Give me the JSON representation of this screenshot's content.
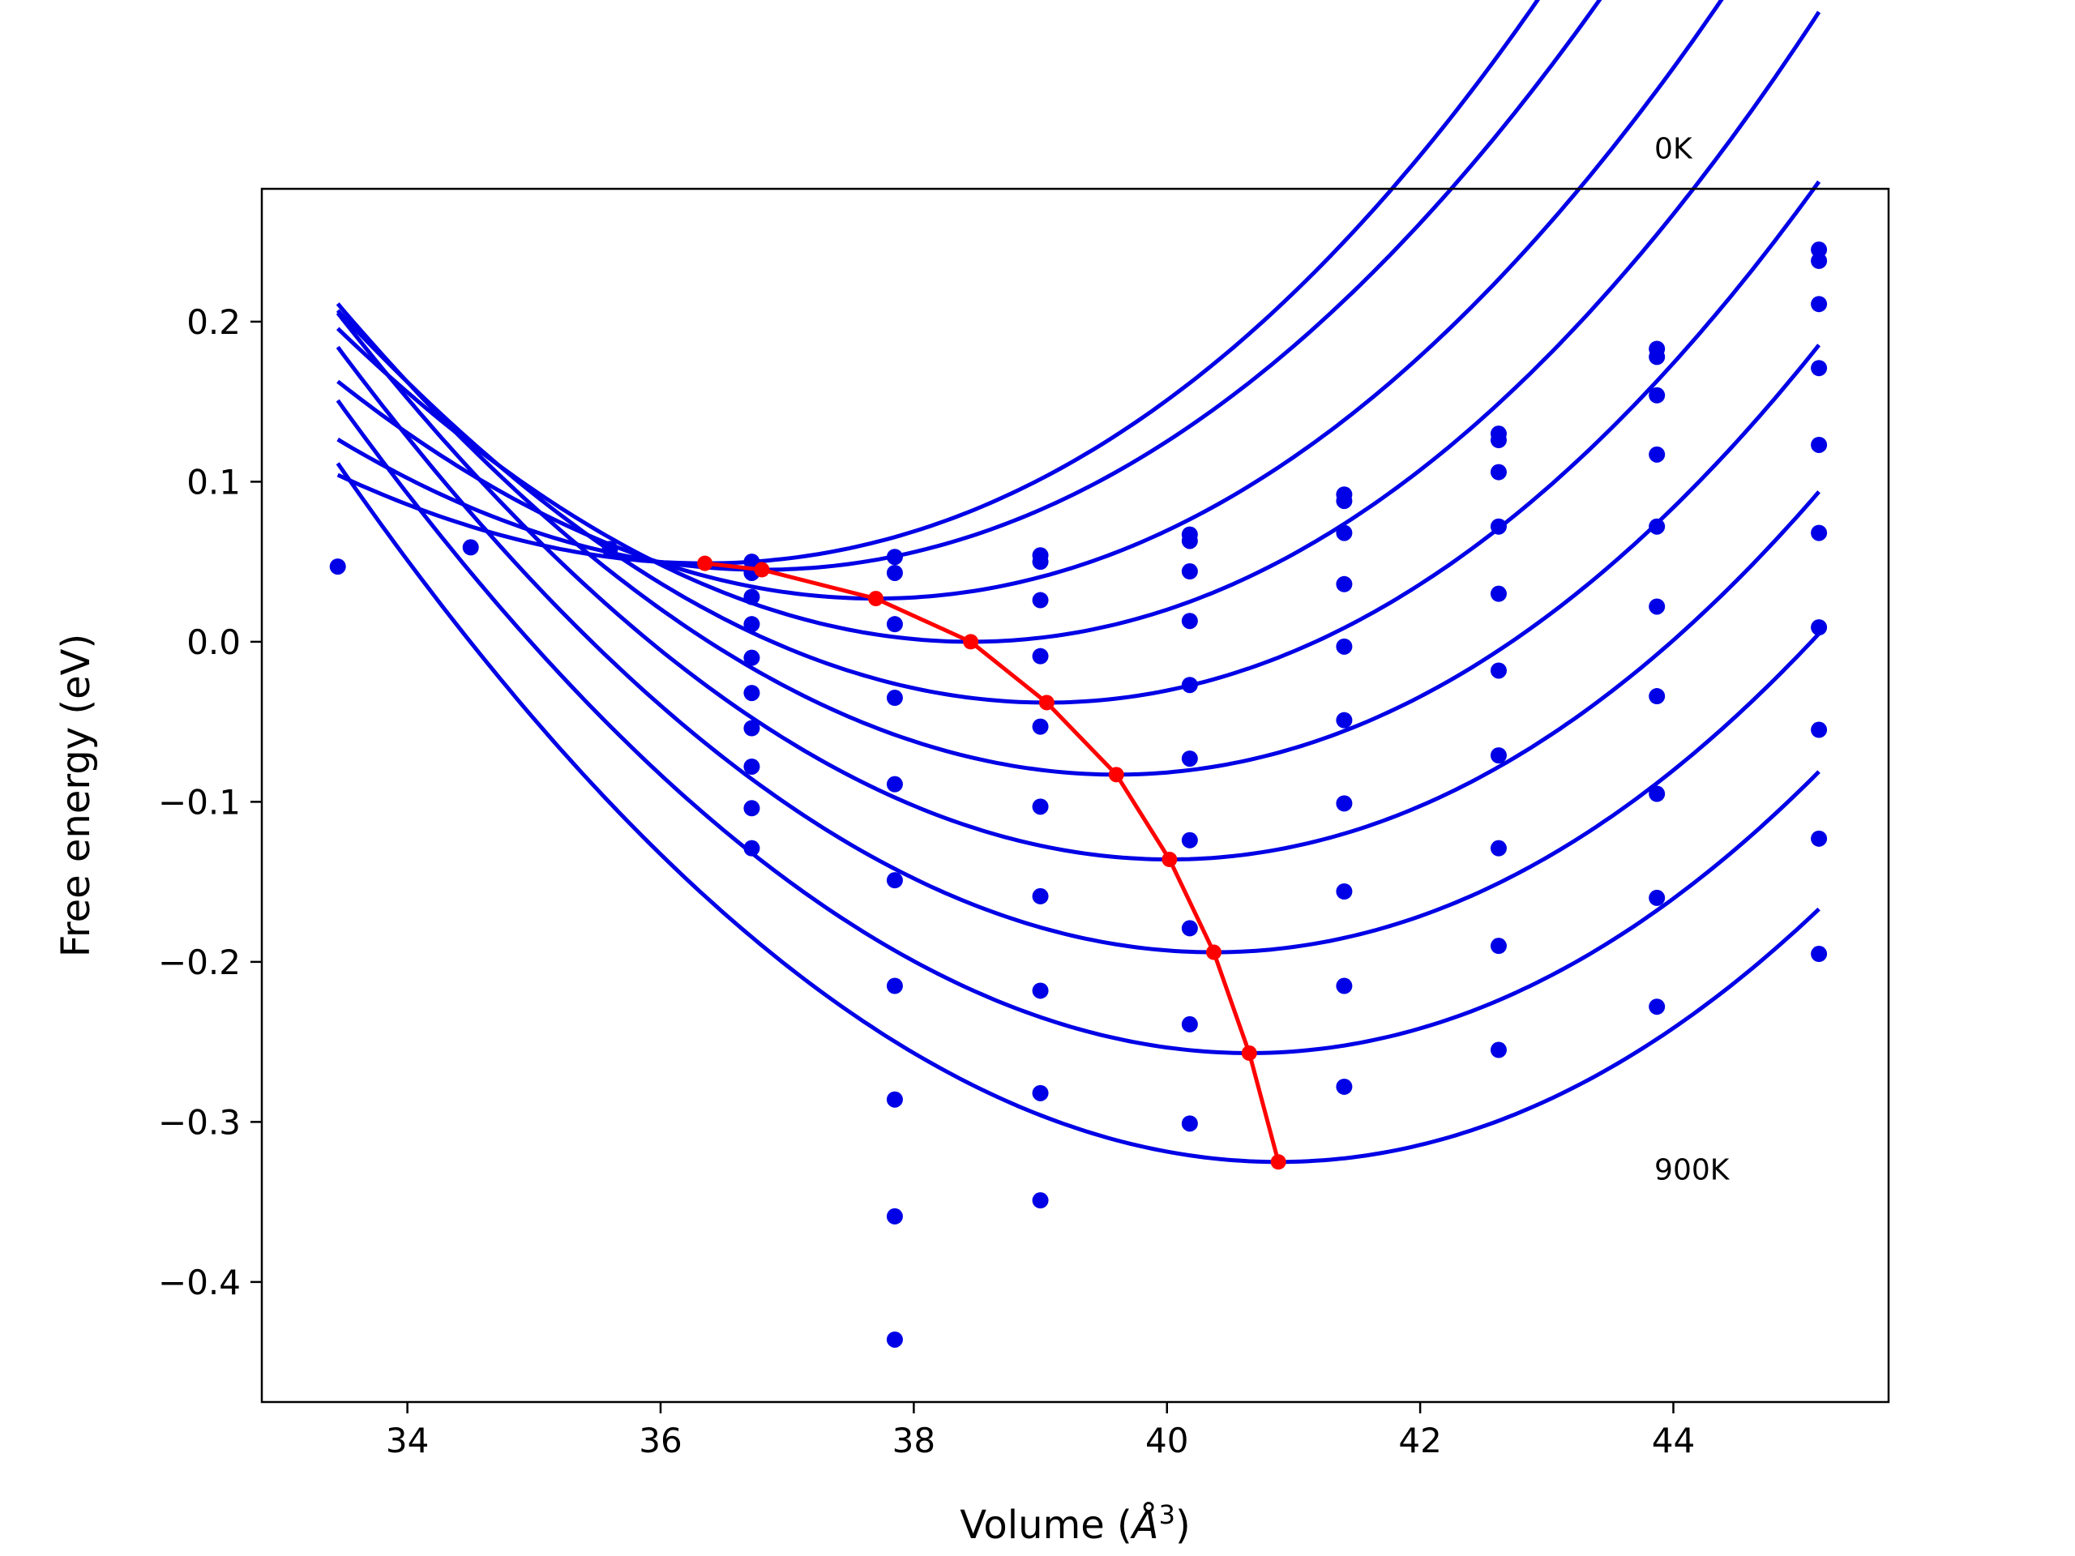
{
  "chart_data": {
    "type": "scatter",
    "title": "",
    "xlabel_prefix": "Volume (",
    "xlabel_symbol": "Å",
    "xlabel_exponent": "3",
    "xlabel_suffix": ")",
    "ylabel": "Free energy (eV)",
    "xlim": [
      32.85,
      45.7
    ],
    "ylim": [
      -0.475,
      0.283
    ],
    "xticks": [
      {
        "value": 34,
        "label": "34"
      },
      {
        "value": 36,
        "label": "36"
      },
      {
        "value": 38,
        "label": "38"
      },
      {
        "value": 40,
        "label": "40"
      },
      {
        "value": 42,
        "label": "42"
      },
      {
        "value": 44,
        "label": "44"
      }
    ],
    "yticks": [
      {
        "value": 0.2,
        "label": "0.2"
      },
      {
        "value": 0.1,
        "label": "0.1"
      },
      {
        "value": 0.0,
        "label": "0.0"
      },
      {
        "value": -0.1,
        "label": "−0.1"
      },
      {
        "value": -0.2,
        "label": "−0.2"
      },
      {
        "value": -0.3,
        "label": "−0.3"
      },
      {
        "value": -0.4,
        "label": "−0.4"
      }
    ],
    "grid": false,
    "annotations": [
      {
        "text": "0K",
        "x": 43.85,
        "y": 0.302
      },
      {
        "text": "900K",
        "x": 43.85,
        "y": -0.336
      }
    ],
    "colors": {
      "curves": "#0000e6",
      "points": "#0000e6",
      "minima": "#ff0000"
    },
    "fit_curves": {
      "x_range": [
        33.45,
        45.15
      ],
      "curves": [
        {
          "x_min": 36.35,
          "f_min": 0.049,
          "a": 0.00705,
          "b": 0.000165
        },
        {
          "x_min": 36.8,
          "f_min": 0.045,
          "a": 0.00755,
          "b": 8.8e-05
        },
        {
          "x_min": 37.7,
          "f_min": 0.027,
          "a": 0.00785,
          "b": 8e-05
        },
        {
          "x_min": 38.45,
          "f_min": 0.0,
          "a": 0.00823,
          "b": 8e-05
        },
        {
          "x_min": 39.05,
          "f_min": -0.038,
          "a": 0.00826,
          "b": 8e-05
        },
        {
          "x_min": 39.6,
          "f_min": -0.083,
          "a": 0.00827,
          "b": 8e-05
        },
        {
          "x_min": 40.02,
          "f_min": -0.136,
          "a": 0.00837,
          "b": 7e-05
        },
        {
          "x_min": 40.37,
          "f_min": -0.194,
          "a": 0.00838,
          "b": 7e-05
        },
        {
          "x_min": 40.65,
          "f_min": -0.257,
          "a": 0.00837,
          "b": 7e-05
        },
        {
          "x_min": 40.88,
          "f_min": -0.325,
          "a": 0.00839,
          "b": 6.5e-05
        }
      ]
    },
    "points": [
      {
        "x": 33.45,
        "y": 0.047
      },
      {
        "x": 34.5,
        "y": 0.059
      },
      {
        "x": 35.6,
        "y": 0.058
      },
      {
        "x": 36.72,
        "y": 0.05
      },
      {
        "x": 36.72,
        "y": 0.043
      },
      {
        "x": 36.72,
        "y": 0.028
      },
      {
        "x": 36.72,
        "y": 0.011
      },
      {
        "x": 36.72,
        "y": -0.01
      },
      {
        "x": 36.72,
        "y": -0.032
      },
      {
        "x": 36.72,
        "y": -0.054
      },
      {
        "x": 36.72,
        "y": -0.078
      },
      {
        "x": 36.72,
        "y": -0.104
      },
      {
        "x": 36.72,
        "y": -0.129
      },
      {
        "x": 37.85,
        "y": 0.053
      },
      {
        "x": 37.85,
        "y": 0.043
      },
      {
        "x": 37.85,
        "y": 0.011
      },
      {
        "x": 37.85,
        "y": -0.035
      },
      {
        "x": 37.85,
        "y": -0.089
      },
      {
        "x": 37.85,
        "y": -0.149
      },
      {
        "x": 37.85,
        "y": -0.215
      },
      {
        "x": 37.85,
        "y": -0.286
      },
      {
        "x": 37.85,
        "y": -0.359
      },
      {
        "x": 37.85,
        "y": -0.436
      },
      {
        "x": 39.0,
        "y": 0.054
      },
      {
        "x": 39.0,
        "y": 0.05
      },
      {
        "x": 39.0,
        "y": 0.026
      },
      {
        "x": 39.0,
        "y": -0.009
      },
      {
        "x": 39.0,
        "y": -0.053
      },
      {
        "x": 39.0,
        "y": -0.103
      },
      {
        "x": 39.0,
        "y": -0.159
      },
      {
        "x": 39.0,
        "y": -0.218
      },
      {
        "x": 39.0,
        "y": -0.282
      },
      {
        "x": 39.0,
        "y": -0.349
      },
      {
        "x": 40.18,
        "y": 0.067
      },
      {
        "x": 40.18,
        "y": 0.063
      },
      {
        "x": 40.18,
        "y": 0.044
      },
      {
        "x": 40.18,
        "y": 0.013
      },
      {
        "x": 40.18,
        "y": -0.027
      },
      {
        "x": 40.18,
        "y": -0.073
      },
      {
        "x": 40.18,
        "y": -0.124
      },
      {
        "x": 40.18,
        "y": -0.179
      },
      {
        "x": 40.18,
        "y": -0.239
      },
      {
        "x": 40.18,
        "y": -0.301
      },
      {
        "x": 41.4,
        "y": 0.092
      },
      {
        "x": 41.4,
        "y": 0.088
      },
      {
        "x": 41.4,
        "y": 0.068
      },
      {
        "x": 41.4,
        "y": 0.036
      },
      {
        "x": 41.4,
        "y": -0.003
      },
      {
        "x": 41.4,
        "y": -0.049
      },
      {
        "x": 41.4,
        "y": -0.101
      },
      {
        "x": 41.4,
        "y": -0.156
      },
      {
        "x": 41.4,
        "y": -0.215
      },
      {
        "x": 41.4,
        "y": -0.278
      },
      {
        "x": 42.62,
        "y": 0.13
      },
      {
        "x": 42.62,
        "y": 0.126
      },
      {
        "x": 42.62,
        "y": 0.106
      },
      {
        "x": 42.62,
        "y": 0.072
      },
      {
        "x": 42.62,
        "y": 0.03
      },
      {
        "x": 42.62,
        "y": -0.018
      },
      {
        "x": 42.62,
        "y": -0.071
      },
      {
        "x": 42.62,
        "y": -0.129
      },
      {
        "x": 42.62,
        "y": -0.19
      },
      {
        "x": 42.62,
        "y": -0.255
      },
      {
        "x": 43.87,
        "y": 0.183
      },
      {
        "x": 43.87,
        "y": 0.178
      },
      {
        "x": 43.87,
        "y": 0.154
      },
      {
        "x": 43.87,
        "y": 0.117
      },
      {
        "x": 43.87,
        "y": 0.072
      },
      {
        "x": 43.87,
        "y": 0.022
      },
      {
        "x": 43.87,
        "y": -0.034
      },
      {
        "x": 43.87,
        "y": -0.095
      },
      {
        "x": 43.87,
        "y": -0.16
      },
      {
        "x": 43.87,
        "y": -0.228
      },
      {
        "x": 45.15,
        "y": 0.245
      },
      {
        "x": 45.15,
        "y": 0.238
      },
      {
        "x": 45.15,
        "y": 0.211
      },
      {
        "x": 45.15,
        "y": 0.171
      },
      {
        "x": 45.15,
        "y": 0.123
      },
      {
        "x": 45.15,
        "y": 0.068
      },
      {
        "x": 45.15,
        "y": 0.009
      },
      {
        "x": 45.15,
        "y": -0.055
      },
      {
        "x": 45.15,
        "y": -0.123
      },
      {
        "x": 45.15,
        "y": -0.195
      }
    ],
    "minima": [
      {
        "x": 36.35,
        "y": 0.049
      },
      {
        "x": 36.8,
        "y": 0.045
      },
      {
        "x": 37.7,
        "y": 0.027
      },
      {
        "x": 38.45,
        "y": 0.0
      },
      {
        "x": 39.05,
        "y": -0.038
      },
      {
        "x": 39.6,
        "y": -0.083
      },
      {
        "x": 40.02,
        "y": -0.136
      },
      {
        "x": 40.37,
        "y": -0.194
      },
      {
        "x": 40.65,
        "y": -0.257
      },
      {
        "x": 40.88,
        "y": -0.325
      }
    ]
  }
}
